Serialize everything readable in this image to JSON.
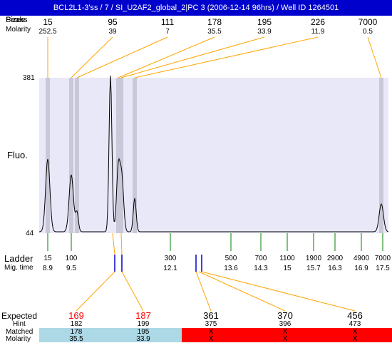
{
  "title": "BCL2L1-3'ss / 7 / SI_U2AF2_global_2|PC 3 (2006-12-14 96hrs) / Well ID 1264501",
  "header": {
    "sizes_label": "Sizes",
    "peaks_label": "Peaks",
    "molarity_label": "Molarity"
  },
  "peaks": [
    {
      "size": "15",
      "molarity": "252.5"
    },
    {
      "size": "95",
      "molarity": "39"
    },
    {
      "size": "111",
      "molarity": "7"
    },
    {
      "size": "178",
      "molarity": "35.5"
    },
    {
      "size": "195",
      "molarity": "33.9"
    },
    {
      "size": "226",
      "molarity": "11.9"
    },
    {
      "size": "7000",
      "molarity": "0.5"
    }
  ],
  "plot": {
    "y_axis_label": "Fluo.",
    "y_max_label": "381",
    "y_min_label": "44"
  },
  "ladder": {
    "label": "Ladder",
    "mig_label": "Mig. time",
    "sizes": [
      "15",
      "100",
      "300",
      "500",
      "700",
      "1100",
      "1900",
      "2900",
      "4900",
      "7000"
    ],
    "mig_times": [
      "8.9",
      "9.5",
      "12.1",
      "13.6",
      "14.3",
      "15",
      "15.7",
      "16.3",
      "16.9",
      "17.5"
    ]
  },
  "expected": {
    "expected_label": "Expected",
    "hint_label": "Hint",
    "matched_label": "Matched",
    "molarity_label": "Molarity",
    "columns": [
      {
        "expected": "169",
        "hint": "182",
        "matched": "178",
        "molarity": "35.5",
        "status": "matched"
      },
      {
        "expected": "187",
        "hint": "199",
        "matched": "195",
        "molarity": "33.9",
        "status": "matched"
      },
      {
        "expected": "361",
        "hint": "375",
        "matched": "X",
        "molarity": "X",
        "status": "missing"
      },
      {
        "expected": "370",
        "hint": "396",
        "matched": "X",
        "molarity": "X",
        "status": "missing"
      },
      {
        "expected": "456",
        "hint": "473",
        "matched": "X",
        "molarity": "X",
        "status": "missing"
      }
    ]
  },
  "colors": {
    "title_bg": "#0000cc",
    "plot_bg": "#e8e8f8",
    "peak_band": "#c8c8d8",
    "connector": "#ffa500",
    "ladder_tick": "#008000",
    "marker": "#0000cc",
    "expected_red": "#ff0000",
    "matched_bg": "#add8e6",
    "missing_bg": "#ff0000"
  }
}
